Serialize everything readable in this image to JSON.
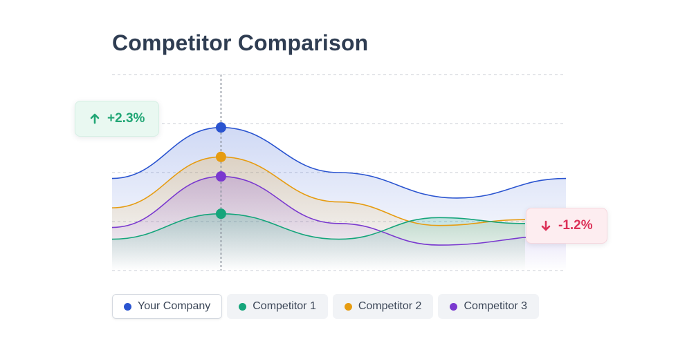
{
  "title": "Competitor Comparison",
  "chart_data": {
    "type": "area",
    "xlim": [
      0,
      1
    ],
    "ylim": [
      0,
      1
    ],
    "grid": true,
    "highlight_x": 0.24,
    "series": [
      {
        "name": "Your Company",
        "color": "#2a54d0",
        "points": [
          [
            0,
            0.47
          ],
          [
            0.24,
            0.73
          ],
          [
            0.5,
            0.5
          ],
          [
            0.76,
            0.37
          ],
          [
            1,
            0.47
          ]
        ]
      },
      {
        "name": "Competitor 2",
        "color": "#e69c11",
        "points": [
          [
            0,
            0.32
          ],
          [
            0.24,
            0.58
          ],
          [
            0.5,
            0.35
          ],
          [
            0.72,
            0.23
          ],
          [
            0.91,
            0.26
          ]
        ]
      },
      {
        "name": "Competitor 3",
        "color": "#7a39cf",
        "points": [
          [
            0,
            0.22
          ],
          [
            0.24,
            0.48
          ],
          [
            0.5,
            0.24
          ],
          [
            0.72,
            0.13
          ],
          [
            1,
            0.18
          ]
        ]
      },
      {
        "name": "Competitor 1",
        "color": "#15a57b",
        "points": [
          [
            0,
            0.16
          ],
          [
            0.24,
            0.29
          ],
          [
            0.5,
            0.16
          ],
          [
            0.72,
            0.27
          ],
          [
            0.91,
            0.24
          ]
        ]
      }
    ]
  },
  "badges": {
    "up": {
      "text": "+2.3%",
      "color": "#21a675"
    },
    "down": {
      "text": "-1.2%",
      "color": "#dc3158"
    }
  },
  "legend": [
    {
      "label": "Your Company",
      "color": "#2a54d0",
      "active": true
    },
    {
      "label": "Competitor 1",
      "color": "#15a57b",
      "active": false
    },
    {
      "label": "Competitor 2",
      "color": "#e69c11",
      "active": false
    },
    {
      "label": "Competitor 3",
      "color": "#7a39cf",
      "active": false
    }
  ]
}
